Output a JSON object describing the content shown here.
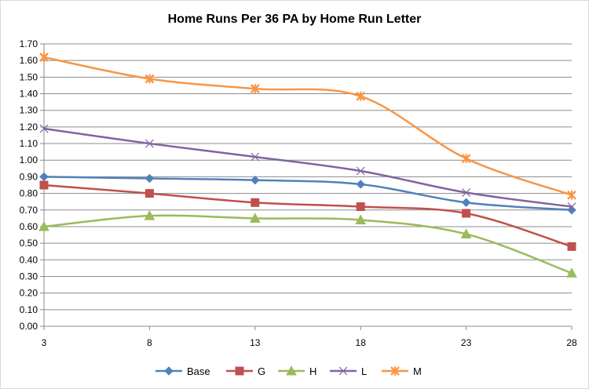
{
  "chart_data": {
    "type": "line",
    "title": "Home Runs Per 36 PA by Home Run Letter",
    "xlabel": "",
    "ylabel": "",
    "x": [
      3,
      8,
      13,
      18,
      23,
      28
    ],
    "x_tick_labels": [
      "3",
      "8",
      "13",
      "18",
      "23",
      "28"
    ],
    "ylim": [
      0,
      1.7
    ],
    "y_tick_labels": [
      "0.00",
      "0.10",
      "0.20",
      "0.30",
      "0.40",
      "0.50",
      "0.60",
      "0.70",
      "0.80",
      "0.90",
      "1.00",
      "1.10",
      "1.20",
      "1.30",
      "1.40",
      "1.50",
      "1.60",
      "1.70"
    ],
    "grid": true,
    "smoothed": true,
    "legend_position": "bottom",
    "series": [
      {
        "name": "Base",
        "color": "#4f81bd",
        "marker": "diamond",
        "values": [
          0.9,
          0.89,
          0.88,
          0.855,
          0.745,
          0.7
        ]
      },
      {
        "name": "G",
        "color": "#c0504d",
        "marker": "square",
        "values": [
          0.85,
          0.8,
          0.745,
          0.72,
          0.68,
          0.48
        ]
      },
      {
        "name": "H",
        "color": "#9bbb59",
        "marker": "triangle",
        "values": [
          0.6,
          0.665,
          0.65,
          0.64,
          0.555,
          0.32
        ]
      },
      {
        "name": "L",
        "color": "#8064a2",
        "marker": "x",
        "values": [
          1.19,
          1.1,
          1.02,
          0.935,
          0.805,
          0.72
        ]
      },
      {
        "name": "M",
        "color": "#f79646",
        "marker": "star",
        "values": [
          1.62,
          1.49,
          1.43,
          1.385,
          1.01,
          0.79
        ]
      }
    ]
  }
}
